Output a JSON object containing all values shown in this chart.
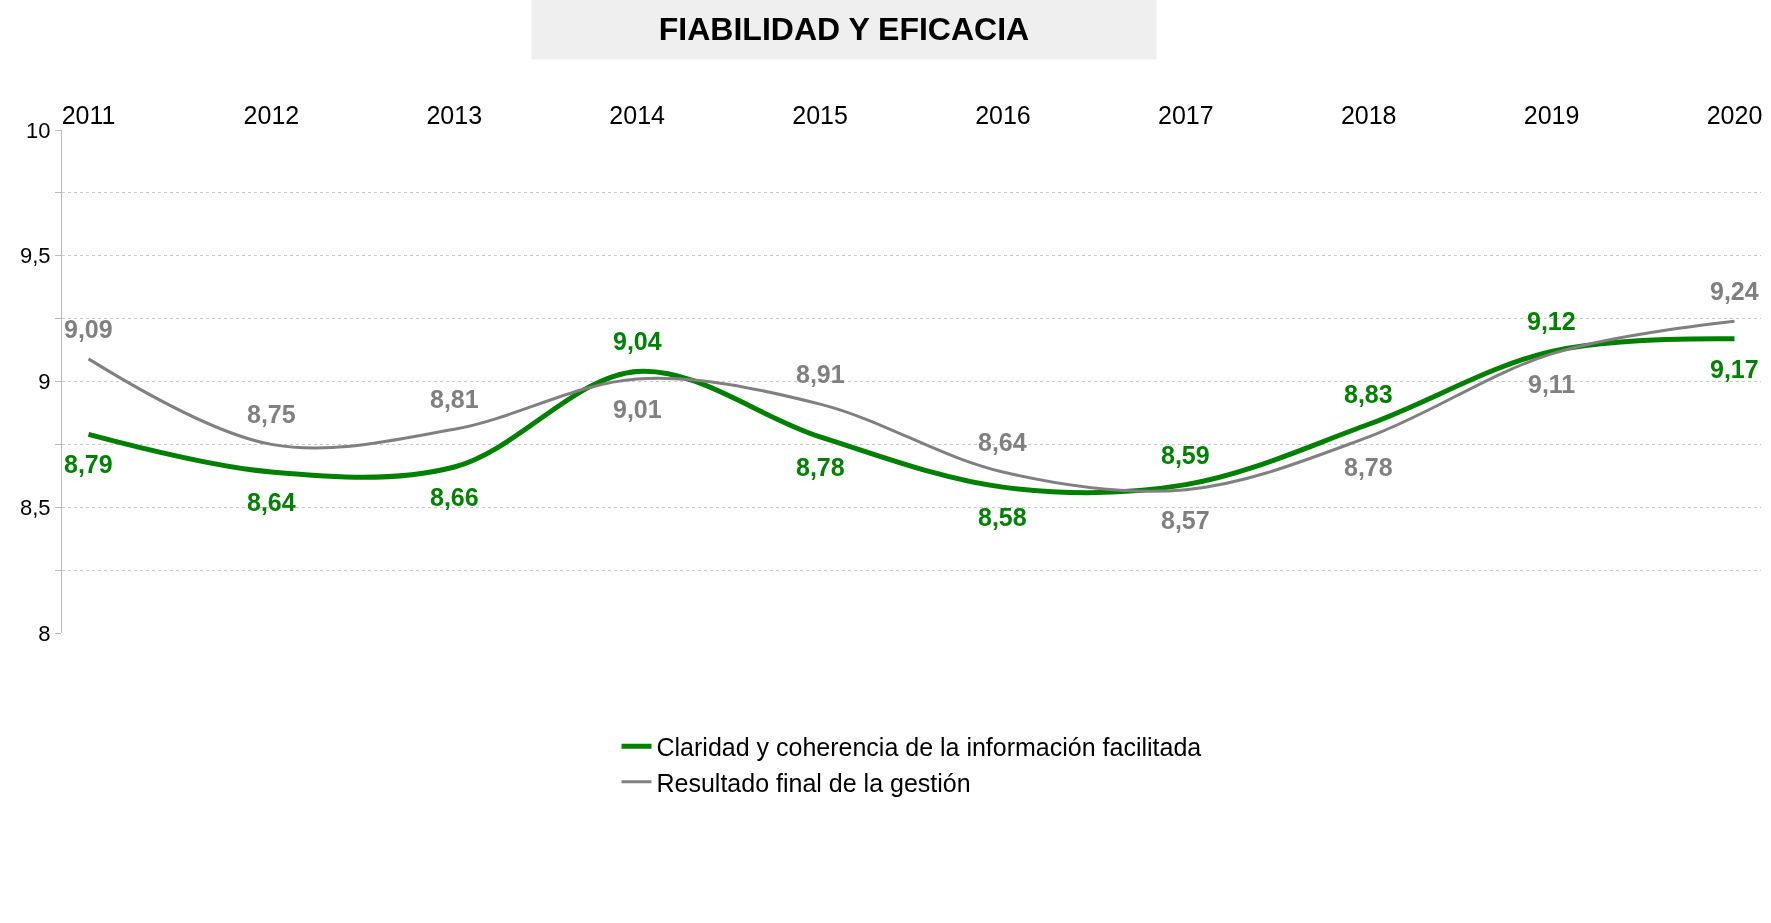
{
  "chart_data": {
    "type": "line",
    "title": "FIABILIDAD Y EFICACIA",
    "categories": [
      "2011",
      "2012",
      "2013",
      "2014",
      "2015",
      "2016",
      "2017",
      "2018",
      "2019",
      "2020"
    ],
    "series": [
      {
        "name": "Claridad y coherencia de la información facilitada",
        "color": "#008000",
        "values": [
          8.79,
          8.64,
          8.66,
          9.04,
          8.78,
          8.58,
          8.59,
          8.83,
          9.12,
          9.17
        ],
        "value_labels": [
          "8,79",
          "8,64",
          "8,66",
          "9,04",
          "8,78",
          "8,58",
          "8,59",
          "8,83",
          "9,12",
          "9,17"
        ]
      },
      {
        "name": "Resultado final de la gestión",
        "color": "#808080",
        "values": [
          9.09,
          8.75,
          8.81,
          9.01,
          8.91,
          8.64,
          8.57,
          8.78,
          9.11,
          9.24
        ],
        "value_labels": [
          "9,09",
          "8,75",
          "8,81",
          "9,01",
          "8,91",
          "8,64",
          "8,57",
          "8,78",
          "9,11",
          "9,24"
        ]
      }
    ],
    "ylim": [
      8,
      10
    ],
    "yticks": [
      8,
      {
        "value": 8.25,
        "label": null
      },
      {
        "value": 8.5,
        "label": "8,5"
      },
      {
        "value": 8.75,
        "label": null
      },
      9,
      {
        "value": 9.25,
        "label": null
      },
      {
        "value": 9.5,
        "label": "9,5"
      },
      {
        "value": 9.75,
        "label": null
      },
      10
    ],
    "grid": "y",
    "legend": "bottom",
    "marker": "none",
    "line_style": "solid"
  }
}
